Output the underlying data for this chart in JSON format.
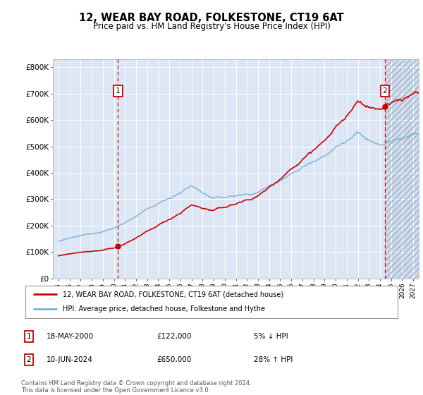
{
  "title": "12, WEAR BAY ROAD, FOLKESTONE, CT19 6AT",
  "subtitle": "Price paid vs. HM Land Registry's House Price Index (HPI)",
  "sale1_date": "18-MAY-2000",
  "sale1_price": 122000,
  "sale1_year": 2000.38,
  "sale2_date": "10-JUN-2024",
  "sale2_price": 650000,
  "sale2_year": 2024.45,
  "legend_line1": "12, WEAR BAY ROAD, FOLKESTONE, CT19 6AT (detached house)",
  "legend_line2": "HPI: Average price, detached house, Folkestone and Hythe",
  "annotation1_date": "18-MAY-2000",
  "annotation1_price": "£122,000",
  "annotation1_hpi": "5% ↓ HPI",
  "annotation2_date": "10-JUN-2024",
  "annotation2_price": "£650,000",
  "annotation2_hpi": "28% ↑ HPI",
  "footer": "Contains HM Land Registry data © Crown copyright and database right 2024.\nThis data is licensed under the Open Government Licence v3.0.",
  "ylabel_ticks": [
    "£0",
    "£100K",
    "£200K",
    "£300K",
    "£400K",
    "£500K",
    "£600K",
    "£700K",
    "£800K"
  ],
  "ytick_values": [
    0,
    100000,
    200000,
    300000,
    400000,
    500000,
    600000,
    700000,
    800000
  ],
  "ylim": [
    0,
    830000
  ],
  "xlim_start": 1994.5,
  "xlim_end": 2027.5,
  "plot_bg_color": "#dce6f5",
  "hpi_line_color": "#7bafd4",
  "price_line_color": "#cc0000",
  "vline_color": "#cc0000",
  "annotation_border_color": "#cc0000",
  "hatch_color": "#b8c8dc"
}
